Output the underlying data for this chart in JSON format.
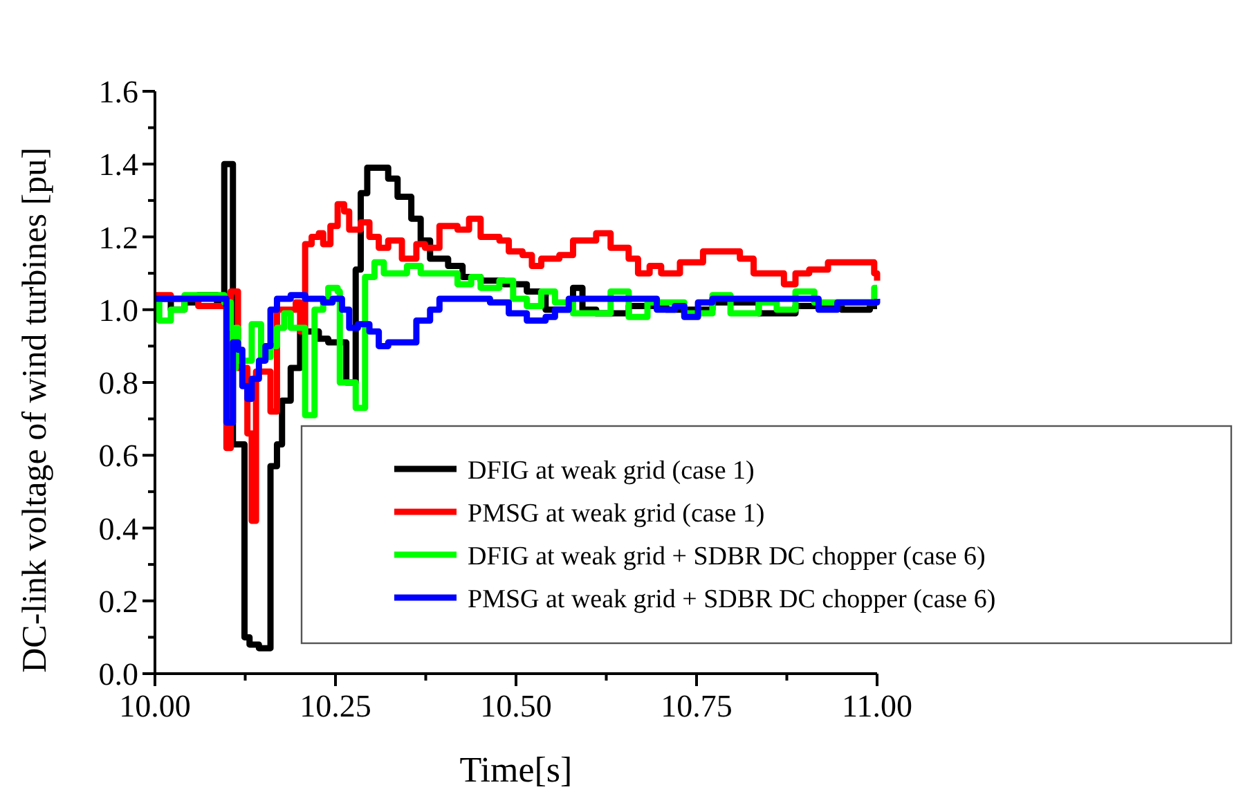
{
  "chart_data": {
    "type": "step",
    "xlabel": "Time[s]",
    "ylabel": "DC-link voltage of wind turbines [pu]",
    "xlim": [
      10,
      11
    ],
    "ylim": [
      0,
      1.6
    ],
    "xticks": [
      {
        "value": 10,
        "label": "10.00"
      },
      {
        "value": 10.125,
        "label": null
      },
      {
        "value": 10.25,
        "label": "10.25"
      },
      {
        "value": 10.375,
        "label": null
      },
      {
        "value": 10.5,
        "label": "10.50"
      },
      {
        "value": 10.625,
        "label": null
      },
      {
        "value": 10.75,
        "label": "10.75"
      },
      {
        "value": 10.875,
        "label": null
      },
      {
        "value": 11,
        "label": "11.00"
      }
    ],
    "yticks": [
      {
        "value": 0,
        "label": "0.0"
      },
      {
        "value": 0.1,
        "label": null
      },
      {
        "value": 0.2,
        "label": "0.2"
      },
      {
        "value": 0.3,
        "label": null
      },
      {
        "value": 0.4,
        "label": "0.4"
      },
      {
        "value": 0.5,
        "label": null
      },
      {
        "value": 0.6,
        "label": "0.6"
      },
      {
        "value": 0.7,
        "label": null
      },
      {
        "value": 0.8,
        "label": "0.8"
      },
      {
        "value": 0.9,
        "label": null
      },
      {
        "value": 1.0,
        "label": "1.0"
      },
      {
        "value": 1.1,
        "label": null
      },
      {
        "value": 1.2,
        "label": "1.2"
      },
      {
        "value": 1.3,
        "label": null
      },
      {
        "value": 1.4,
        "label": "1.4"
      },
      {
        "value": 1.5,
        "label": null
      },
      {
        "value": 1.6,
        "label": "1.6"
      }
    ],
    "grid": false,
    "legend": "bottom right",
    "line_style": "solid",
    "series": [
      {
        "name": "DFIG at weak grid (case 1)",
        "color": "#000000",
        "x": [
          10.0,
          10.022,
          10.041,
          10.06,
          10.086,
          10.096,
          10.108,
          10.124,
          10.131,
          10.144,
          10.16,
          10.169,
          10.176,
          10.188,
          10.201,
          10.227,
          10.24,
          10.265,
          10.278,
          10.285,
          10.294,
          10.323,
          10.336,
          10.355,
          10.368,
          10.381,
          10.406,
          10.426,
          10.451,
          10.483,
          10.515,
          10.541,
          10.579,
          10.592,
          10.611,
          10.656,
          10.708,
          10.772,
          10.836,
          10.887,
          10.951,
          10.99,
          11.0
        ],
        "values": [
          1.03,
          1.0,
          1.02,
          1.04,
          1.02,
          1.4,
          0.63,
          0.1,
          0.08,
          0.07,
          0.57,
          0.63,
          0.75,
          0.84,
          0.94,
          0.92,
          0.91,
          0.8,
          1.11,
          1.32,
          1.39,
          1.36,
          1.31,
          1.25,
          1.19,
          1.14,
          1.12,
          1.09,
          1.08,
          1.07,
          1.05,
          1.0,
          1.06,
          1.0,
          0.99,
          1.01,
          1.0,
          1.02,
          0.99,
          1.01,
          1.0,
          1.01,
          1.01
        ]
      },
      {
        "name": "PMSG at weak grid (case 1)",
        "color": "#ff0000",
        "x": [
          10.0,
          10.022,
          10.06,
          10.099,
          10.105,
          10.115,
          10.128,
          10.134,
          10.14,
          10.16,
          10.169,
          10.195,
          10.201,
          10.208,
          10.217,
          10.227,
          10.233,
          10.243,
          10.253,
          10.262,
          10.269,
          10.285,
          10.297,
          10.31,
          10.323,
          10.342,
          10.362,
          10.374,
          10.394,
          10.419,
          10.435,
          10.451,
          10.477,
          10.49,
          10.509,
          10.522,
          10.535,
          10.56,
          10.579,
          10.611,
          10.631,
          10.656,
          10.669,
          10.685,
          10.701,
          10.727,
          10.759,
          10.785,
          10.81,
          10.829,
          10.855,
          10.871,
          10.887,
          10.906,
          10.932,
          10.964,
          10.996,
          11.0
        ],
        "values": [
          1.04,
          1.03,
          1.01,
          0.62,
          1.05,
          0.84,
          0.66,
          0.42,
          0.83,
          0.72,
          1.0,
          1.02,
          0.94,
          1.18,
          1.2,
          1.21,
          1.18,
          1.23,
          1.29,
          1.27,
          1.22,
          1.24,
          1.2,
          1.17,
          1.19,
          1.14,
          1.18,
          1.17,
          1.23,
          1.22,
          1.25,
          1.2,
          1.19,
          1.16,
          1.15,
          1.12,
          1.14,
          1.15,
          1.19,
          1.21,
          1.17,
          1.14,
          1.1,
          1.12,
          1.1,
          1.13,
          1.16,
          1.16,
          1.14,
          1.1,
          1.1,
          1.07,
          1.1,
          1.11,
          1.13,
          1.13,
          1.1,
          1.08
        ]
      },
      {
        "name": "DFIG at weak grid + SDBR DC chopper (case 6)",
        "color": "#00ff00",
        "x": [
          10.0,
          10.006,
          10.022,
          10.041,
          10.096,
          10.105,
          10.108,
          10.112,
          10.115,
          10.134,
          10.147,
          10.16,
          10.169,
          10.179,
          10.188,
          10.208,
          10.221,
          10.233,
          10.24,
          10.253,
          10.256,
          10.278,
          10.291,
          10.304,
          10.317,
          10.323,
          10.349,
          10.368,
          10.419,
          10.438,
          10.451,
          10.477,
          10.496,
          10.515,
          10.535,
          10.554,
          10.579,
          10.631,
          10.656,
          10.682,
          10.708,
          10.733,
          10.772,
          10.797,
          10.836,
          10.861,
          10.887,
          10.913,
          10.951,
          10.99,
          10.996,
          11.0
        ],
        "values": [
          1.02,
          0.97,
          1.0,
          1.04,
          1.02,
          0.95,
          0.84,
          0.95,
          0.86,
          0.96,
          0.87,
          0.9,
          0.95,
          0.99,
          0.95,
          0.71,
          1.0,
          1.02,
          1.06,
          1.05,
          0.8,
          0.73,
          1.09,
          1.13,
          1.1,
          1.1,
          1.12,
          1.1,
          1.07,
          1.09,
          1.06,
          1.08,
          1.03,
          1.01,
          1.05,
          1.02,
          0.99,
          1.05,
          0.98,
          1.02,
          1.02,
          0.99,
          1.04,
          0.99,
          1.02,
          1.0,
          1.05,
          1.02,
          1.02,
          1.02,
          1.06,
          1.06
        ]
      },
      {
        "name": "PMSG at weak grid + SDBR DC chopper (case 6)",
        "color": "#0000ff",
        "x": [
          10.0,
          10.099,
          10.108,
          10.115,
          10.121,
          10.128,
          10.134,
          10.144,
          10.153,
          10.16,
          10.169,
          10.188,
          10.208,
          10.233,
          10.246,
          10.259,
          10.269,
          10.281,
          10.297,
          10.31,
          10.323,
          10.349,
          10.362,
          10.381,
          10.394,
          10.451,
          10.464,
          10.49,
          10.515,
          10.541,
          10.554,
          10.573,
          10.682,
          10.695,
          10.72,
          10.733,
          10.752,
          10.772,
          10.887,
          10.919,
          10.945,
          11.0
        ],
        "values": [
          1.03,
          0.69,
          0.91,
          0.89,
          0.79,
          0.755,
          0.81,
          0.86,
          0.9,
          1.0,
          1.03,
          1.04,
          1.03,
          1.02,
          1.03,
          1.0,
          0.95,
          0.96,
          0.94,
          0.9,
          0.91,
          0.91,
          0.97,
          1.0,
          1.03,
          1.03,
          1.02,
          0.99,
          0.97,
          0.98,
          1.0,
          1.03,
          1.03,
          1.0,
          1.01,
          0.98,
          1.02,
          1.03,
          1.03,
          1.0,
          1.02,
          1.03
        ]
      }
    ]
  }
}
